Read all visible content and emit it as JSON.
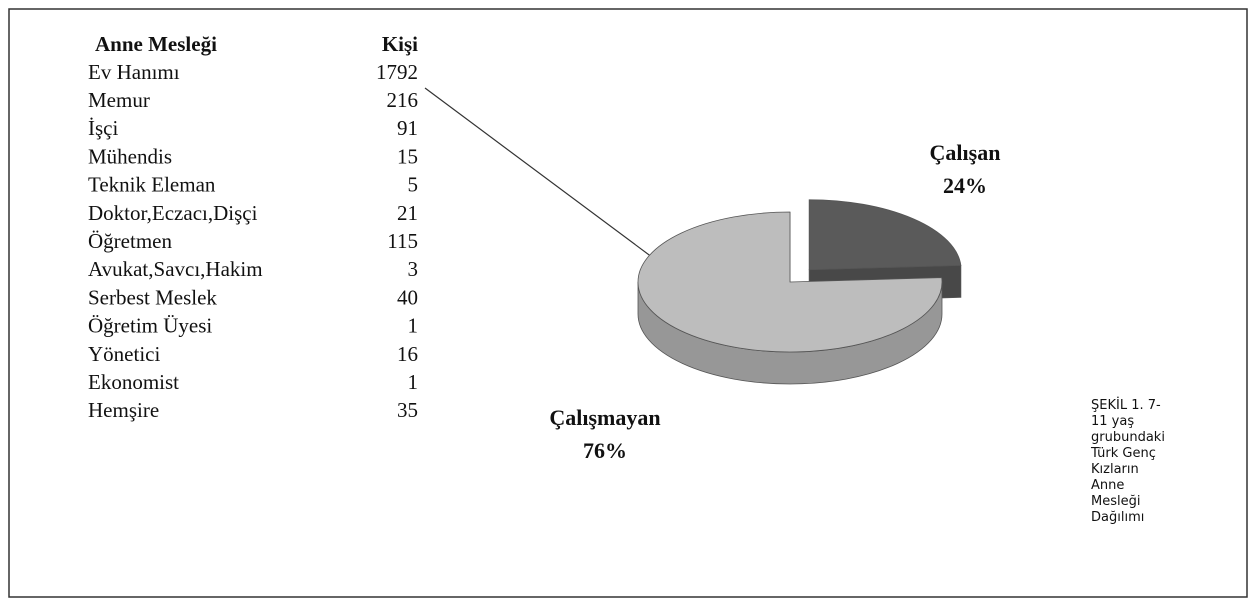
{
  "table": {
    "header": [
      "Anne Mesleği",
      "Kişi"
    ],
    "rows": [
      [
        "Ev Hanımı",
        1792
      ],
      [
        "Memur",
        216
      ],
      [
        "İşçi",
        91
      ],
      [
        "Mühendis",
        15
      ],
      [
        "Teknik Eleman",
        5
      ],
      [
        "Doktor,Eczacı,Dişçi",
        21
      ],
      [
        "Öğretmen",
        115
      ],
      [
        "Avukat,Savcı,Hakim",
        3
      ],
      [
        "Serbest Meslek",
        40
      ],
      [
        "Öğretim Üyesi",
        1
      ],
      [
        "Yönetici",
        16
      ],
      [
        "Ekonomist",
        1
      ],
      [
        "Hemşire",
        35
      ]
    ]
  },
  "chart_data": {
    "type": "pie",
    "categories": [
      "Çalışan",
      "Çalışmayan"
    ],
    "values": [
      24,
      76
    ],
    "value_labels": [
      "24%",
      "76%"
    ],
    "colors": [
      "#5a5a5a",
      "#bdbdbd"
    ]
  },
  "caption": "ŞEKİL 1. 7-11 yaş grubundaki Türk Genç Kızların Anne Mesleği Dağılımı"
}
